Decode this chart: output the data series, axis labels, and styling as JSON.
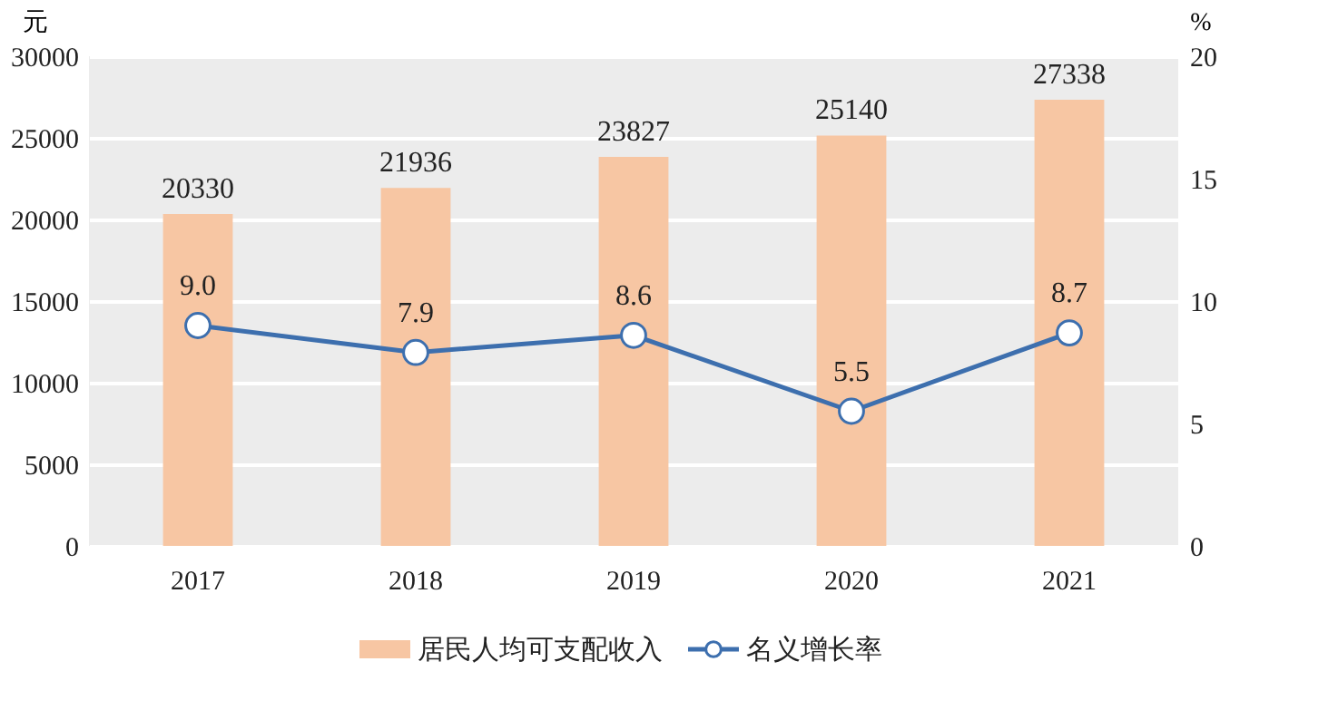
{
  "chart_data": {
    "type": "bar",
    "categories": [
      "2017",
      "2018",
      "2019",
      "2020",
      "2021"
    ],
    "series": [
      {
        "name": "居民人均可支配收入",
        "color": "#f7c6a3",
        "values": [
          20330,
          21936,
          23827,
          25140,
          27338
        ],
        "value_labels": [
          "20330",
          "21936",
          "23827",
          "25140",
          "27338"
        ]
      },
      {
        "name": "名义增长率",
        "type": "line",
        "axis": "y2",
        "color": "#3d6fae",
        "marker": "circle",
        "values": [
          9.0,
          7.9,
          8.6,
          5.5,
          8.7
        ],
        "value_labels": [
          "9.0",
          "7.9",
          "8.6",
          "5.5",
          "8.7"
        ]
      }
    ],
    "ylabel": "元",
    "y2label": "%",
    "ylim": [
      0,
      30000
    ],
    "yticks": [
      0,
      5000,
      10000,
      15000,
      20000,
      25000,
      30000
    ],
    "y2lim": [
      0,
      20
    ],
    "y2ticks": [
      0,
      5,
      10,
      15,
      20
    ],
    "grid": "y",
    "legend": "bottom"
  }
}
